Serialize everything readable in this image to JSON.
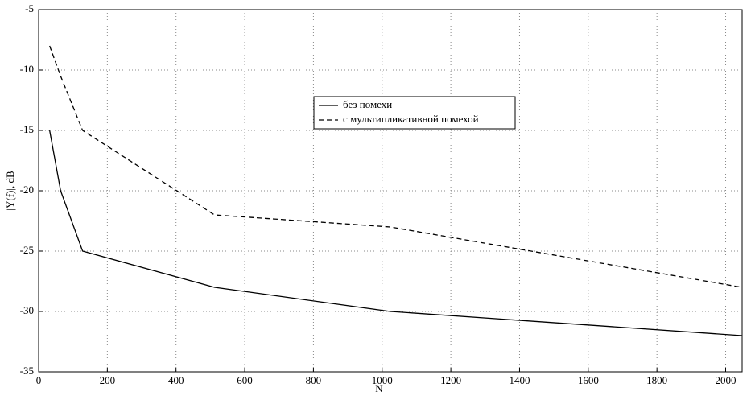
{
  "chart_data": {
    "type": "line",
    "x_label": "N",
    "y_label": "|Y(f)|, dB",
    "xlim": [
      0,
      2048
    ],
    "ylim": [
      -35,
      -5
    ],
    "xticks": [
      0,
      200,
      400,
      600,
      800,
      1000,
      1200,
      1400,
      1600,
      1800,
      2000
    ],
    "yticks": [
      -35,
      -30,
      -25,
      -20,
      -15,
      -10,
      -5
    ],
    "grid": true,
    "legend_position": "center",
    "series": [
      {
        "name": "без помехи",
        "color": "#000000",
        "style": "solid",
        "x": [
          32,
          64,
          128,
          512,
          1024,
          2048
        ],
        "values": [
          -15,
          -20,
          -25,
          -28,
          -30,
          -32
        ]
      },
      {
        "name": "с мультипликативной помехой",
        "color": "#000000",
        "style": "dashed",
        "x": [
          32,
          64,
          128,
          512,
          1024,
          2048
        ],
        "values": [
          -8,
          -10.5,
          -15,
          -22,
          -23,
          -28
        ]
      }
    ]
  }
}
